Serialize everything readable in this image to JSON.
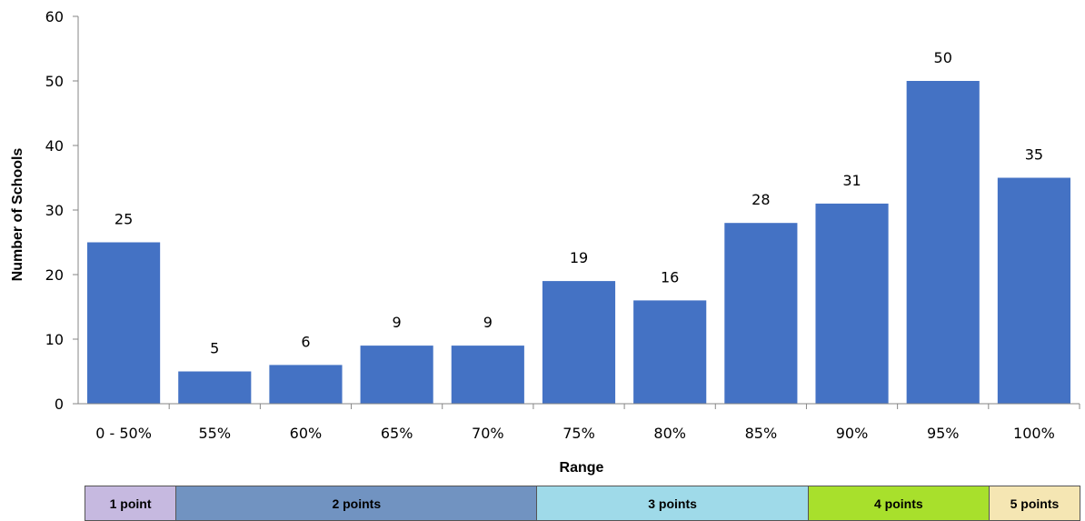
{
  "chart_data": {
    "type": "bar",
    "title": "",
    "xlabel": "Range",
    "ylabel": "Number of Schools",
    "categories": [
      "0 - 50%",
      "55%",
      "60%",
      "65%",
      "70%",
      "75%",
      "80%",
      "85%",
      "90%",
      "95%",
      "100%"
    ],
    "values": [
      25,
      5,
      6,
      9,
      9,
      19,
      16,
      28,
      31,
      50,
      35
    ],
    "ylim": [
      0,
      60
    ],
    "yticks": [
      0,
      10,
      20,
      30,
      40,
      50,
      60
    ],
    "grid": false,
    "legend": "none",
    "bar_color": "#4472c4",
    "data_labels": true
  },
  "points_band": [
    {
      "label": "1 point",
      "span": 1,
      "color": "#c6b9e0"
    },
    {
      "label": "2 points",
      "span": 4,
      "color": "#7193c1"
    },
    {
      "label": "3 points",
      "span": 3,
      "color": "#9fdae9"
    },
    {
      "label": "4 points",
      "span": 2,
      "color": "#a8e02c"
    },
    {
      "label": "5 points",
      "span": 1,
      "color": "#f5e6b3"
    }
  ]
}
